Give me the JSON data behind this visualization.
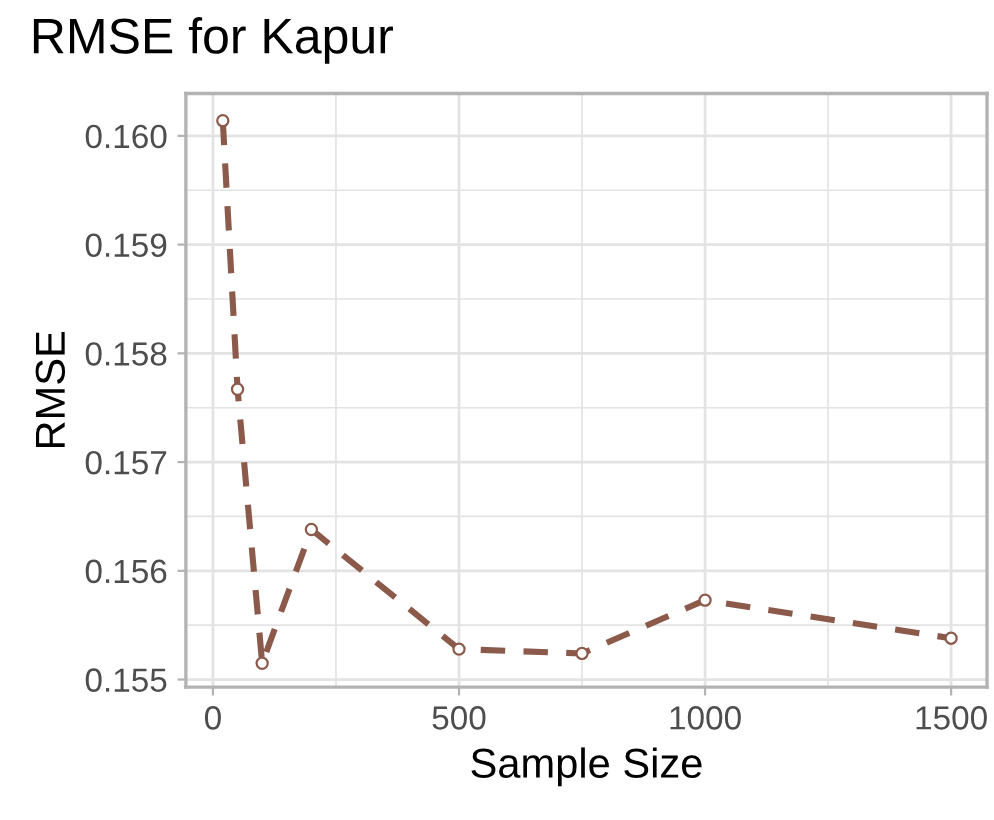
{
  "chart_data": {
    "type": "line",
    "title": "RMSE for Kapur",
    "xlabel": "Sample Size",
    "ylabel": "RMSE",
    "x": [
      20,
      50,
      100,
      200,
      500,
      750,
      1000,
      1500
    ],
    "series": [
      {
        "color": "#8c5a4b",
        "values": [
          0.16014,
          0.15767,
          0.15515,
          0.15638,
          0.15528,
          0.15524,
          0.15573,
          0.15538
        ]
      }
    ],
    "xlim": [
      -55,
      1573
    ],
    "ylim": [
      0.15493,
      0.16039
    ],
    "xticks": [
      0,
      500,
      1000,
      1500
    ],
    "yticks": [
      {
        "value": 0.155,
        "label": "0.155"
      },
      {
        "value": 0.156,
        "label": "0.156"
      },
      {
        "value": 0.157,
        "label": "0.157"
      },
      {
        "value": 0.158,
        "label": "0.158"
      },
      {
        "value": 0.159,
        "label": "0.159"
      },
      {
        "value": 0.16,
        "label": "0.160"
      }
    ],
    "grid": true,
    "marker": "circle",
    "line_style": "dashed"
  }
}
